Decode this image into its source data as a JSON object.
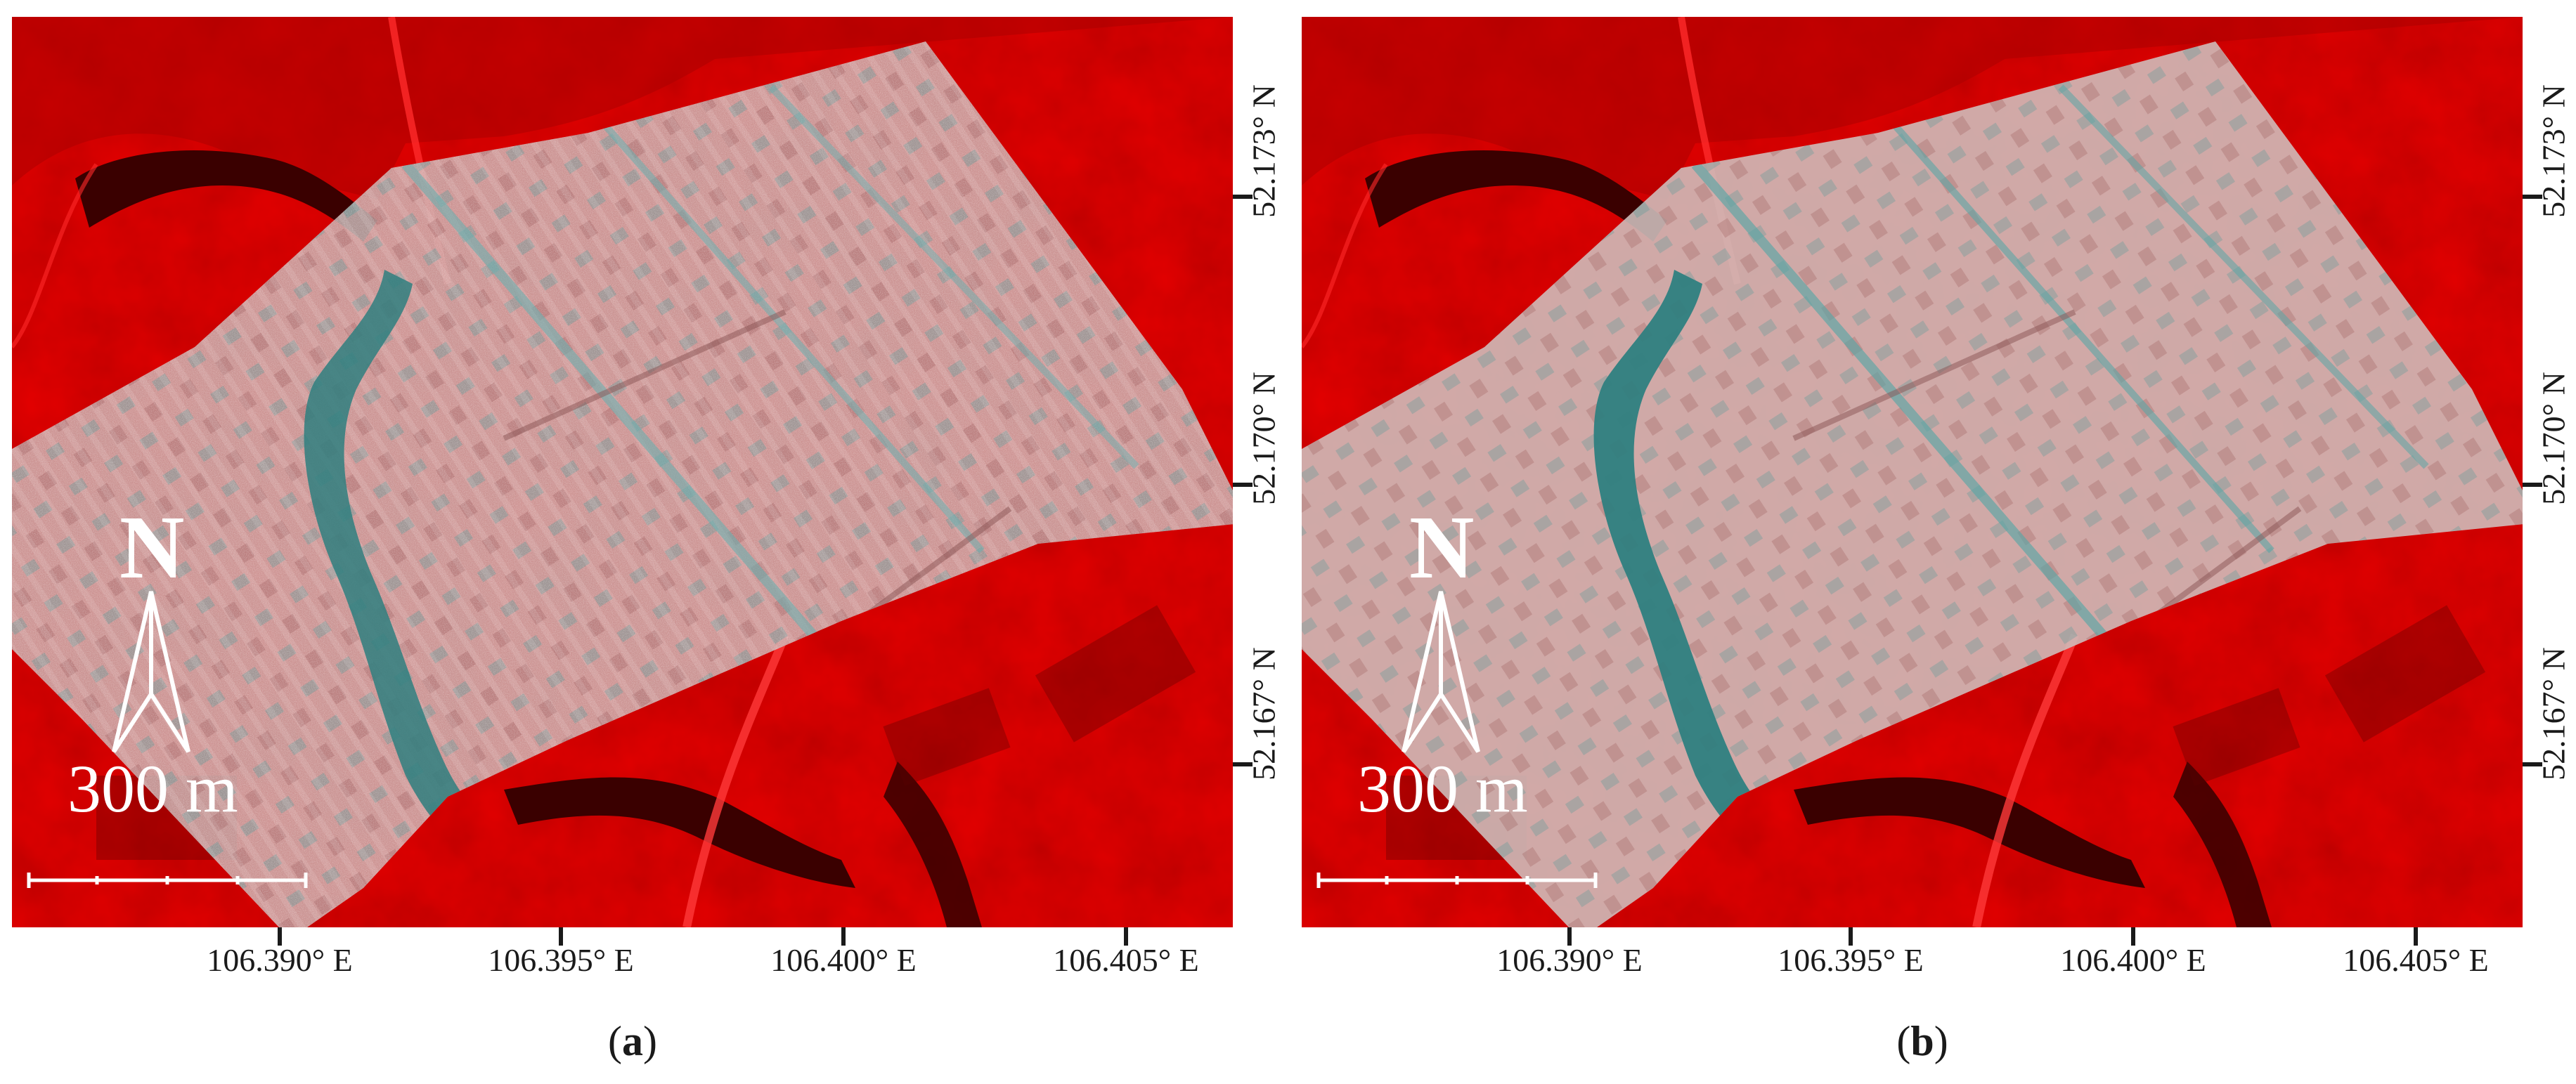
{
  "panels": [
    {
      "id": "a",
      "caption_open": "(",
      "caption_letter": "a",
      "caption_close": ")",
      "north_label": "N",
      "scale_label": "300 m",
      "lat_labels": [
        "52.173° N",
        "52.170° N",
        "52.167° N"
      ],
      "lon_labels": [
        "106.390° E",
        "106.395° E",
        "106.400° E",
        "106.405° E"
      ],
      "overlay_style": "noisy mosaic with striping"
    },
    {
      "id": "b",
      "caption_open": "(",
      "caption_letter": "b",
      "caption_close": ")",
      "north_label": "N",
      "scale_label": "300 m",
      "lat_labels": [
        "52.173° N",
        "52.170° N",
        "52.167° N"
      ],
      "lon_labels": [
        "106.390° E",
        "106.395° E",
        "106.400° E",
        "106.405° E"
      ],
      "overlay_style": "smooth corrected mosaic"
    }
  ],
  "colors": {
    "background_red": "#c40000",
    "field_red": "#d20a0a",
    "river_dark": "#3a0000",
    "overlay_gray": "#c9b7b5",
    "water_teal": "#2f7f7f",
    "road_red": "#ff2a2a",
    "text": "#1a1a1a"
  },
  "icons": {
    "north_arrow": "north-arrow-icon",
    "scale_bar": "scale-bar-icon"
  }
}
